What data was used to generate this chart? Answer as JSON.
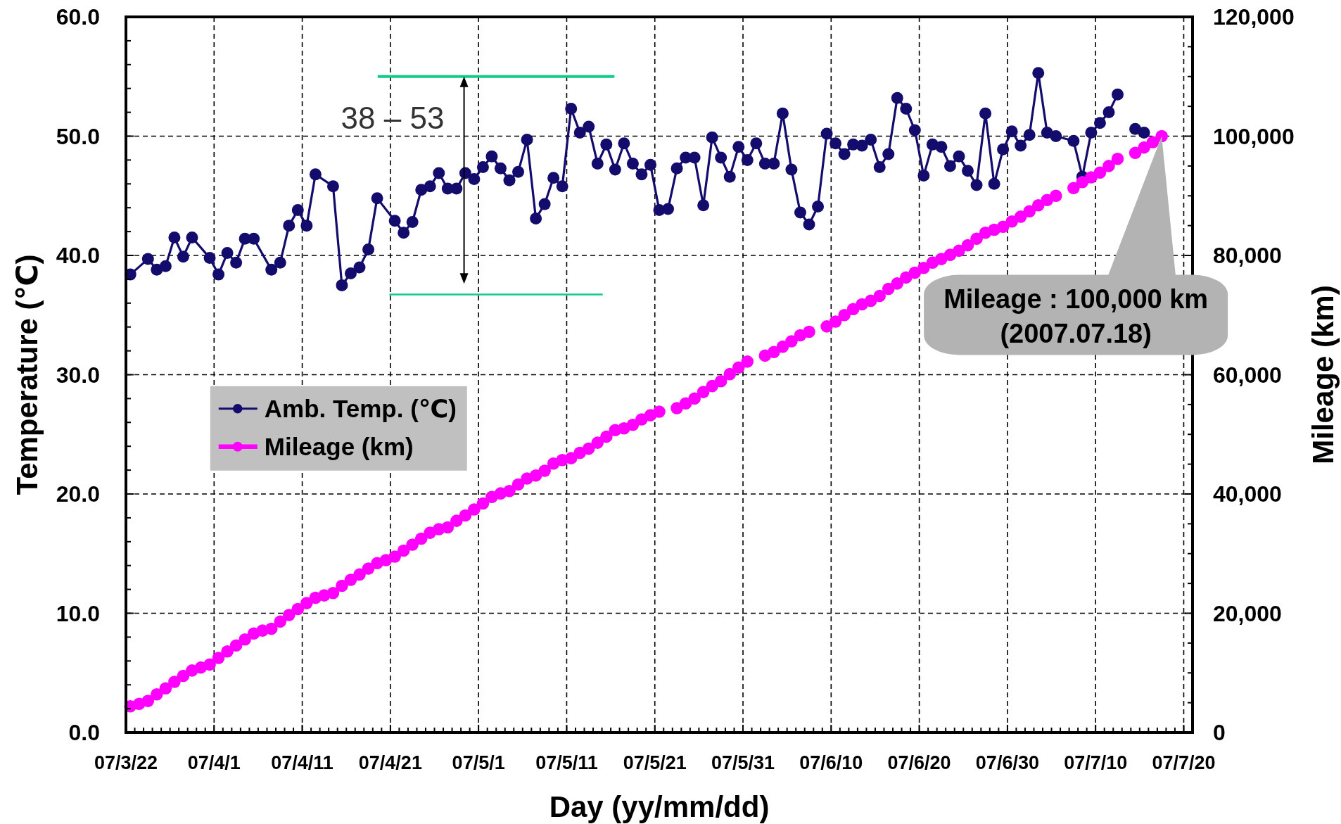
{
  "chart_data": {
    "type": "line",
    "xlabel": "Day (yy/mm/dd)",
    "ylabel": "Temperature (℃)",
    "y2label": "Mileage (km)",
    "xlim": [
      "2007-03-22",
      "2007-07-21"
    ],
    "xticks": [
      {
        "value": "2007-03-22",
        "label": "07/3/22"
      },
      {
        "value": "2007-03-23",
        "label": null
      },
      {
        "value": "2007-03-24",
        "label": null
      },
      {
        "value": "2007-03-25",
        "label": null
      },
      {
        "value": "2007-03-26",
        "label": null
      },
      {
        "value": "2007-03-27",
        "label": null
      },
      {
        "value": "2007-03-28",
        "label": null
      },
      {
        "value": "2007-03-29",
        "label": null
      },
      {
        "value": "2007-03-30",
        "label": null
      },
      {
        "value": "2007-03-31",
        "label": null
      },
      {
        "value": "2007-04-01",
        "label": "07/4/1"
      },
      {
        "value": "2007-04-02",
        "label": null
      },
      {
        "value": "2007-04-03",
        "label": null
      },
      {
        "value": "2007-04-04",
        "label": null
      },
      {
        "value": "2007-04-05",
        "label": null
      },
      {
        "value": "2007-04-06",
        "label": null
      },
      {
        "value": "2007-04-07",
        "label": null
      },
      {
        "value": "2007-04-08",
        "label": null
      },
      {
        "value": "2007-04-09",
        "label": null
      },
      {
        "value": "2007-04-10",
        "label": null
      },
      {
        "value": "2007-04-11",
        "label": "07/4/11"
      },
      {
        "value": "2007-04-12",
        "label": null
      },
      {
        "value": "2007-04-13",
        "label": null
      },
      {
        "value": "2007-04-14",
        "label": null
      },
      {
        "value": "2007-04-15",
        "label": null
      },
      {
        "value": "2007-04-16",
        "label": null
      },
      {
        "value": "2007-04-17",
        "label": null
      },
      {
        "value": "2007-04-18",
        "label": null
      },
      {
        "value": "2007-04-19",
        "label": null
      },
      {
        "value": "2007-04-20",
        "label": null
      },
      {
        "value": "2007-04-21",
        "label": "07/4/21"
      },
      {
        "value": "2007-04-22",
        "label": null
      },
      {
        "value": "2007-04-23",
        "label": null
      },
      {
        "value": "2007-04-24",
        "label": null
      },
      {
        "value": "2007-04-25",
        "label": null
      },
      {
        "value": "2007-04-26",
        "label": null
      },
      {
        "value": "2007-04-27",
        "label": null
      },
      {
        "value": "2007-04-28",
        "label": null
      },
      {
        "value": "2007-04-29",
        "label": null
      },
      {
        "value": "2007-04-30",
        "label": null
      },
      {
        "value": "2007-05-01",
        "label": "07/5/1"
      },
      {
        "value": "2007-05-02",
        "label": null
      },
      {
        "value": "2007-05-03",
        "label": null
      },
      {
        "value": "2007-05-04",
        "label": null
      },
      {
        "value": "2007-05-05",
        "label": null
      },
      {
        "value": "2007-05-06",
        "label": null
      },
      {
        "value": "2007-05-07",
        "label": null
      },
      {
        "value": "2007-05-08",
        "label": null
      },
      {
        "value": "2007-05-09",
        "label": null
      },
      {
        "value": "2007-05-10",
        "label": null
      },
      {
        "value": "2007-05-11",
        "label": "07/5/11"
      },
      {
        "value": "2007-05-12",
        "label": null
      },
      {
        "value": "2007-05-13",
        "label": null
      },
      {
        "value": "2007-05-14",
        "label": null
      },
      {
        "value": "2007-05-15",
        "label": null
      },
      {
        "value": "2007-05-16",
        "label": null
      },
      {
        "value": "2007-05-17",
        "label": null
      },
      {
        "value": "2007-05-18",
        "label": null
      },
      {
        "value": "2007-05-19",
        "label": null
      },
      {
        "value": "2007-05-20",
        "label": null
      },
      {
        "value": "2007-05-21",
        "label": "07/5/21"
      },
      {
        "value": "2007-05-22",
        "label": null
      },
      {
        "value": "2007-05-23",
        "label": null
      },
      {
        "value": "2007-05-24",
        "label": null
      },
      {
        "value": "2007-05-25",
        "label": null
      },
      {
        "value": "2007-05-26",
        "label": null
      },
      {
        "value": "2007-05-27",
        "label": null
      },
      {
        "value": "2007-05-28",
        "label": null
      },
      {
        "value": "2007-05-29",
        "label": null
      },
      {
        "value": "2007-05-30",
        "label": null
      },
      {
        "value": "2007-05-31",
        "label": "07/5/31"
      },
      {
        "value": "2007-06-01",
        "label": null
      },
      {
        "value": "2007-06-02",
        "label": null
      },
      {
        "value": "2007-06-03",
        "label": null
      },
      {
        "value": "2007-06-04",
        "label": null
      },
      {
        "value": "2007-06-05",
        "label": null
      },
      {
        "value": "2007-06-06",
        "label": null
      },
      {
        "value": "2007-06-07",
        "label": null
      },
      {
        "value": "2007-06-08",
        "label": null
      },
      {
        "value": "2007-06-09",
        "label": null
      },
      {
        "value": "2007-06-10",
        "label": "07/6/10"
      },
      {
        "value": "2007-06-11",
        "label": null
      },
      {
        "value": "2007-06-12",
        "label": null
      },
      {
        "value": "2007-06-13",
        "label": null
      },
      {
        "value": "2007-06-14",
        "label": null
      },
      {
        "value": "2007-06-15",
        "label": null
      },
      {
        "value": "2007-06-16",
        "label": null
      },
      {
        "value": "2007-06-17",
        "label": null
      },
      {
        "value": "2007-06-18",
        "label": null
      },
      {
        "value": "2007-06-19",
        "label": null
      },
      {
        "value": "2007-06-20",
        "label": "07/6/20"
      },
      {
        "value": "2007-06-21",
        "label": null
      },
      {
        "value": "2007-06-22",
        "label": null
      },
      {
        "value": "2007-06-23",
        "label": null
      },
      {
        "value": "2007-06-24",
        "label": null
      },
      {
        "value": "2007-06-25",
        "label": null
      },
      {
        "value": "2007-06-26",
        "label": null
      },
      {
        "value": "2007-06-27",
        "label": null
      },
      {
        "value": "2007-06-28",
        "label": null
      },
      {
        "value": "2007-06-29",
        "label": null
      },
      {
        "value": "2007-06-30",
        "label": "07/6/30"
      },
      {
        "value": "2007-07-01",
        "label": null
      },
      {
        "value": "2007-07-02",
        "label": null
      },
      {
        "value": "2007-07-03",
        "label": null
      },
      {
        "value": "2007-07-04",
        "label": null
      },
      {
        "value": "2007-07-05",
        "label": null
      },
      {
        "value": "2007-07-06",
        "label": null
      },
      {
        "value": "2007-07-07",
        "label": null
      },
      {
        "value": "2007-07-08",
        "label": null
      },
      {
        "value": "2007-07-09",
        "label": null
      },
      {
        "value": "2007-07-10",
        "label": "07/7/10"
      },
      {
        "value": "2007-07-11",
        "label": null
      },
      {
        "value": "2007-07-12",
        "label": null
      },
      {
        "value": "2007-07-13",
        "label": null
      },
      {
        "value": "2007-07-14",
        "label": null
      },
      {
        "value": "2007-07-15",
        "label": null
      },
      {
        "value": "2007-07-16",
        "label": null
      },
      {
        "value": "2007-07-17",
        "label": null
      },
      {
        "value": "2007-07-18",
        "label": null
      },
      {
        "value": "2007-07-19",
        "label": null
      },
      {
        "value": "2007-07-20",
        "label": "07/7/20"
      }
    ],
    "ylim": [
      0,
      60
    ],
    "yticks": [
      {
        "value": 0,
        "label": "0.0"
      },
      {
        "value": 2,
        "label": null
      },
      {
        "value": 4,
        "label": null
      },
      {
        "value": 6,
        "label": null
      },
      {
        "value": 8,
        "label": null
      },
      {
        "value": 10,
        "label": "10.0"
      },
      {
        "value": 12,
        "label": null
      },
      {
        "value": 14,
        "label": null
      },
      {
        "value": 16,
        "label": null
      },
      {
        "value": 18,
        "label": null
      },
      {
        "value": 20,
        "label": "20.0"
      },
      {
        "value": 22,
        "label": null
      },
      {
        "value": 24,
        "label": null
      },
      {
        "value": 26,
        "label": null
      },
      {
        "value": 28,
        "label": null
      },
      {
        "value": 30,
        "label": "30.0"
      },
      {
        "value": 32,
        "label": null
      },
      {
        "value": 34,
        "label": null
      },
      {
        "value": 36,
        "label": null
      },
      {
        "value": 38,
        "label": null
      },
      {
        "value": 40,
        "label": "40.0"
      },
      {
        "value": 42,
        "label": null
      },
      {
        "value": 44,
        "label": null
      },
      {
        "value": 46,
        "label": null
      },
      {
        "value": 48,
        "label": null
      },
      {
        "value": 50,
        "label": "50.0"
      },
      {
        "value": 52,
        "label": null
      },
      {
        "value": 54,
        "label": null
      },
      {
        "value": 56,
        "label": null
      },
      {
        "value": 58,
        "label": null
      },
      {
        "value": 60,
        "label": "60.0"
      }
    ],
    "y2lim": [
      0,
      120000
    ],
    "y2ticks": [
      0,
      {
        "value": 5000,
        "label": null
      },
      {
        "value": 10000,
        "label": null
      },
      {
        "value": 15000,
        "label": null
      },
      {
        "value": 20000,
        "label": "20,000"
      },
      {
        "value": 25000,
        "label": null
      },
      {
        "value": 30000,
        "label": null
      },
      {
        "value": 35000,
        "label": null
      },
      {
        "value": 40000,
        "label": "40,000"
      },
      {
        "value": 45000,
        "label": null
      },
      {
        "value": 50000,
        "label": null
      },
      {
        "value": 55000,
        "label": null
      },
      {
        "value": 60000,
        "label": "60,000"
      },
      {
        "value": 65000,
        "label": null
      },
      {
        "value": 70000,
        "label": null
      },
      {
        "value": 75000,
        "label": null
      },
      {
        "value": 80000,
        "label": "80,000"
      },
      {
        "value": 85000,
        "label": null
      },
      {
        "value": 90000,
        "label": null
      },
      {
        "value": 95000,
        "label": null
      },
      {
        "value": 100000,
        "label": "100,000"
      },
      {
        "value": 105000,
        "label": null
      },
      {
        "value": 110000,
        "label": null
      },
      {
        "value": 115000,
        "label": null
      },
      {
        "value": 120000,
        "label": "120,000"
      }
    ],
    "grid": true,
    "legend": "left",
    "marker": "circle",
    "x": [
      "2007-03-22T12:00",
      "2007-03-23T12:00",
      "2007-03-24T12:00",
      "2007-03-25T12:00",
      "2007-03-26T12:00",
      "2007-03-27T12:00",
      "2007-03-28T12:00",
      "2007-03-29T12:00",
      "2007-03-30T12:00",
      "2007-03-31T12:00",
      "2007-04-01T12:00",
      "2007-04-02T12:00",
      "2007-04-03T12:00",
      "2007-04-04T12:00",
      "2007-04-05T12:00",
      "2007-04-06T12:00",
      "2007-04-07T12:00",
      "2007-04-08T12:00",
      "2007-04-09T12:00",
      "2007-04-10T12:00",
      "2007-04-11T12:00",
      "2007-04-12T12:00",
      "2007-04-13T12:00",
      "2007-04-14T12:00",
      "2007-04-15T12:00",
      "2007-04-16T12:00",
      "2007-04-17T12:00",
      "2007-04-18T12:00",
      "2007-04-19T12:00",
      "2007-04-20T12:00",
      "2007-04-21T12:00",
      "2007-04-22T12:00",
      "2007-04-23T12:00",
      "2007-04-24T12:00",
      "2007-04-25T12:00",
      "2007-04-26T12:00",
      "2007-04-27T12:00",
      "2007-04-28T12:00",
      "2007-04-29T12:00",
      "2007-04-30T12:00",
      "2007-05-01T12:00",
      "2007-05-02T12:00",
      "2007-05-03T12:00",
      "2007-05-04T12:00",
      "2007-05-05T12:00",
      "2007-05-06T12:00",
      "2007-05-07T12:00",
      "2007-05-08T12:00",
      "2007-05-09T12:00",
      "2007-05-10T12:00",
      "2007-05-11T12:00",
      "2007-05-12T12:00",
      "2007-05-13T12:00",
      "2007-05-14T12:00",
      "2007-05-15T12:00",
      "2007-05-16T12:00",
      "2007-05-17T12:00",
      "2007-05-18T12:00",
      "2007-05-19T12:00",
      "2007-05-20T12:00",
      "2007-05-21T12:00",
      "2007-05-22T12:00",
      "2007-05-23T12:00",
      "2007-05-24T12:00",
      "2007-05-25T12:00",
      "2007-05-26T12:00",
      "2007-05-27T12:00",
      "2007-05-28T12:00",
      "2007-05-29T12:00",
      "2007-05-30T12:00",
      "2007-05-31T12:00",
      "2007-06-01T12:00",
      "2007-06-02T12:00",
      "2007-06-03T12:00",
      "2007-06-04T12:00",
      "2007-06-05T12:00",
      "2007-06-06T12:00",
      "2007-06-07T12:00",
      "2007-06-08T12:00",
      "2007-06-09T12:00",
      "2007-06-10T12:00",
      "2007-06-11T12:00",
      "2007-06-12T12:00",
      "2007-06-13T12:00",
      "2007-06-14T12:00",
      "2007-06-15T12:00",
      "2007-06-16T12:00",
      "2007-06-17T12:00",
      "2007-06-18T12:00",
      "2007-06-19T12:00",
      "2007-06-20T12:00",
      "2007-06-21T12:00",
      "2007-06-22T12:00",
      "2007-06-23T12:00",
      "2007-06-24T12:00",
      "2007-06-25T12:00",
      "2007-06-26T12:00",
      "2007-06-27T12:00",
      "2007-06-28T12:00",
      "2007-06-29T12:00",
      "2007-06-30T12:00",
      "2007-07-01T12:00",
      "2007-07-02T12:00",
      "2007-07-03T12:00",
      "2007-07-04T12:00",
      "2007-07-05T12:00",
      "2007-07-06T12:00",
      "2007-07-07T12:00",
      "2007-07-08T12:00",
      "2007-07-09T12:00",
      "2007-07-10T12:00",
      "2007-07-11T12:00",
      "2007-07-12T12:00",
      "2007-07-13T12:00",
      "2007-07-14T12:00",
      "2007-07-15T12:00",
      "2007-07-16T12:00",
      "2007-07-17T12:00"
    ],
    "series": [
      {
        "name": "Amb. Temp. (℃)",
        "color": "#140c6c",
        "x": [
          "2007-03-22T12:00",
          "2007-03-24T12:00",
          "2007-03-25T12:00",
          "2007-03-26T12:00",
          "2007-03-27T12:00",
          "2007-03-28T12:00",
          "2007-03-29T12:00",
          "2007-03-31T12:00",
          "2007-04-01T12:00",
          "2007-04-02T12:00",
          "2007-04-03T12:00",
          "2007-04-04T12:00",
          "2007-04-05T12:00",
          "2007-04-07T12:00",
          "2007-04-08T12:00",
          "2007-04-09T12:00",
          "2007-04-10T12:00",
          "2007-04-11T12:00",
          "2007-04-12T12:00",
          "2007-04-14T12:00",
          "2007-04-15T12:00",
          "2007-04-16T12:00",
          "2007-04-17T12:00",
          "2007-04-18T12:00",
          "2007-04-19T12:00",
          "2007-04-21T12:00",
          "2007-04-22T12:00",
          "2007-04-23T12:00",
          "2007-04-24T12:00",
          "2007-04-25T12:00",
          "2007-04-26T12:00",
          "2007-04-27T12:00",
          "2007-04-28T12:00",
          "2007-04-29T12:00",
          "2007-04-30T12:00",
          "2007-05-01T12:00",
          "2007-05-02T12:00",
          "2007-05-03T12:00",
          "2007-05-04T12:00",
          "2007-05-05T12:00",
          "2007-05-06T12:00",
          "2007-05-07T12:00",
          "2007-05-08T12:00",
          "2007-05-09T12:00",
          "2007-05-10T12:00",
          "2007-05-11T12:00",
          "2007-05-12T12:00",
          "2007-05-13T12:00",
          "2007-05-14T12:00",
          "2007-05-15T12:00",
          "2007-05-16T12:00",
          "2007-05-17T12:00",
          "2007-05-18T12:00",
          "2007-05-19T12:00",
          "2007-05-20T12:00",
          "2007-05-21T12:00",
          "2007-05-22T12:00",
          "2007-05-23T12:00",
          "2007-05-24T12:00",
          "2007-05-25T12:00",
          "2007-05-26T12:00",
          "2007-05-27T12:00",
          "2007-05-28T12:00",
          "2007-05-29T12:00",
          "2007-05-30T12:00",
          "2007-05-31T12:00",
          "2007-06-01T12:00",
          "2007-06-02T12:00",
          "2007-06-03T12:00",
          "2007-06-04T12:00",
          "2007-06-05T12:00",
          "2007-06-06T12:00",
          "2007-06-07T12:00",
          "2007-06-08T12:00",
          "2007-06-09T12:00",
          "2007-06-10T12:00",
          "2007-06-11T12:00",
          "2007-06-12T12:00",
          "2007-06-13T12:00",
          "2007-06-14T12:00",
          "2007-06-15T12:00",
          "2007-06-16T12:00",
          "2007-06-17T12:00",
          "2007-06-18T12:00",
          "2007-06-19T12:00",
          "2007-06-20T12:00",
          "2007-06-21T12:00",
          "2007-06-22T12:00",
          "2007-06-23T12:00",
          "2007-06-24T12:00",
          "2007-06-25T12:00",
          "2007-06-26T12:00",
          "2007-06-27T12:00",
          "2007-06-28T12:00",
          "2007-06-29T12:00",
          "2007-06-30T12:00",
          "2007-07-01T12:00",
          "2007-07-02T12:00",
          "2007-07-03T12:00",
          "2007-07-04T12:00",
          "2007-07-05T12:00",
          "2007-07-07T12:00",
          "2007-07-08T12:00",
          "2007-07-09T12:00",
          "2007-07-10T12:00",
          "2007-07-11T12:00",
          "2007-07-12T12:00",
          "2007-07-13T12:00",
          "2007-07-14T12:00",
          "2007-07-15T12:00"
        ],
        "values": [
          38.4,
          39.7,
          38.8,
          39.1,
          41.5,
          39.9,
          41.5,
          39.8,
          38.4,
          40.2,
          39.4,
          41.4,
          41.4,
          38.8,
          39.4,
          42.5,
          43.8,
          42.5,
          46.8,
          45.8,
          37.5,
          38.5,
          39.0,
          40.5,
          44.8,
          42.9,
          41.9,
          42.8,
          45.5,
          45.8,
          46.9,
          45.6,
          45.6,
          46.9,
          46.4,
          47.4,
          48.3,
          47.3,
          46.3,
          47.0,
          49.7,
          43.1,
          44.3,
          46.5,
          45.8,
          52.3,
          50.3,
          50.8,
          47.7,
          49.3,
          47.2,
          49.4,
          47.7,
          46.8,
          47.6,
          43.8,
          43.9,
          47.3,
          48.2,
          48.2,
          44.2,
          49.9,
          48.2,
          46.6,
          49.1,
          48.0,
          49.4,
          47.7,
          47.7,
          51.9,
          47.2,
          43.6,
          42.6,
          44.1,
          50.2,
          49.4,
          48.5,
          49.3,
          49.2,
          49.7,
          47.4,
          48.5,
          53.2,
          52.3,
          50.5,
          46.7,
          49.3,
          49.1,
          47.5,
          48.3,
          47.1,
          45.9,
          51.9,
          46.0,
          48.9,
          50.4,
          49.2,
          50.1,
          55.3,
          50.3,
          50.0,
          49.6,
          46.6,
          50.3,
          51.1,
          52.0,
          53.5,
          null,
          50.6,
          50.3
        ]
      },
      {
        "name": "Mileage (km)",
        "color": "#ff00ff",
        "axis": "y2",
        "values": [
          4400,
          4800,
          5300,
          6400,
          7400,
          8500,
          9500,
          10400,
          10900,
          11400,
          12500,
          13600,
          14600,
          15600,
          16600,
          17100,
          17400,
          18600,
          19700,
          20700,
          21700,
          22600,
          23000,
          23400,
          24600,
          25600,
          26500,
          27500,
          28400,
          28900,
          29500,
          30500,
          31500,
          32500,
          33500,
          34100,
          34400,
          35500,
          36400,
          37400,
          38400,
          39500,
          40100,
          40500,
          41600,
          42600,
          43100,
          43900,
          45100,
          45700,
          46000,
          46900,
          47600,
          48600,
          49600,
          50700,
          51000,
          51600,
          52500,
          53200,
          53800,
          null,
          54400,
          55200,
          56000,
          57100,
          58100,
          58900,
          60100,
          61200,
          62200,
          null,
          63200,
          63800,
          64700,
          65600,
          66600,
          67200,
          null,
          68100,
          68900,
          70000,
          71000,
          71800,
          72400,
          73200,
          74400,
          75300,
          76300,
          77100,
          77900,
          78800,
          79400,
          80100,
          80800,
          81700,
          82800,
          83800,
          84300,
          84800,
          85700,
          86500,
          87400,
          88400,
          89300,
          90000,
          null,
          91300,
          92300,
          93100,
          93900,
          95000,
          96200,
          null,
          97200,
          98100,
          99000,
          100000
        ]
      }
    ],
    "annotations": [
      "38 – 53",
      {
        "text": "Mileage : 100,000 km\n(2007.07.18)",
        "x": "2007-07-17T12:00",
        "y": 50
      }
    ]
  }
}
